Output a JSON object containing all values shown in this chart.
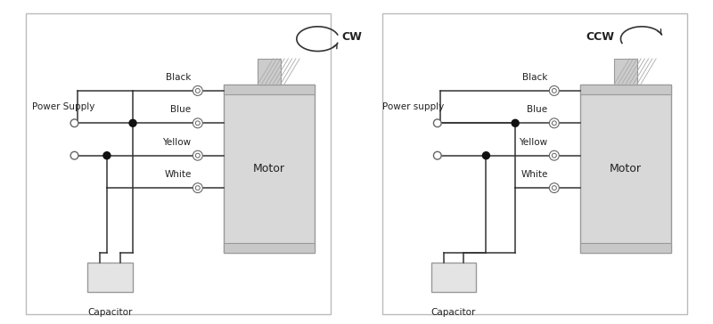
{
  "bg_color": "#ffffff",
  "line_color": "#333333",
  "motor_fill": "#d8d8d8",
  "motor_cap_fill": "#c8c8c8",
  "motor_edge": "#999999",
  "cap_fill": "#e4e4e4",
  "cap_edge": "#999999",
  "shaft_fill": "#cccccc",
  "shaft_edge": "#999999",
  "conn_color": "#666666",
  "dot_color": "#111111",
  "text_color": "#222222",
  "left_title": "Power Supply",
  "right_title": "Power supply",
  "cap_label": "Capacitor",
  "motor_label": "Motor",
  "wire_labels": [
    "Black",
    "Blue",
    "Yellow",
    "White"
  ],
  "cw_text": "CW",
  "ccw_text": "CCW",
  "border_color": "#bbbbbb"
}
